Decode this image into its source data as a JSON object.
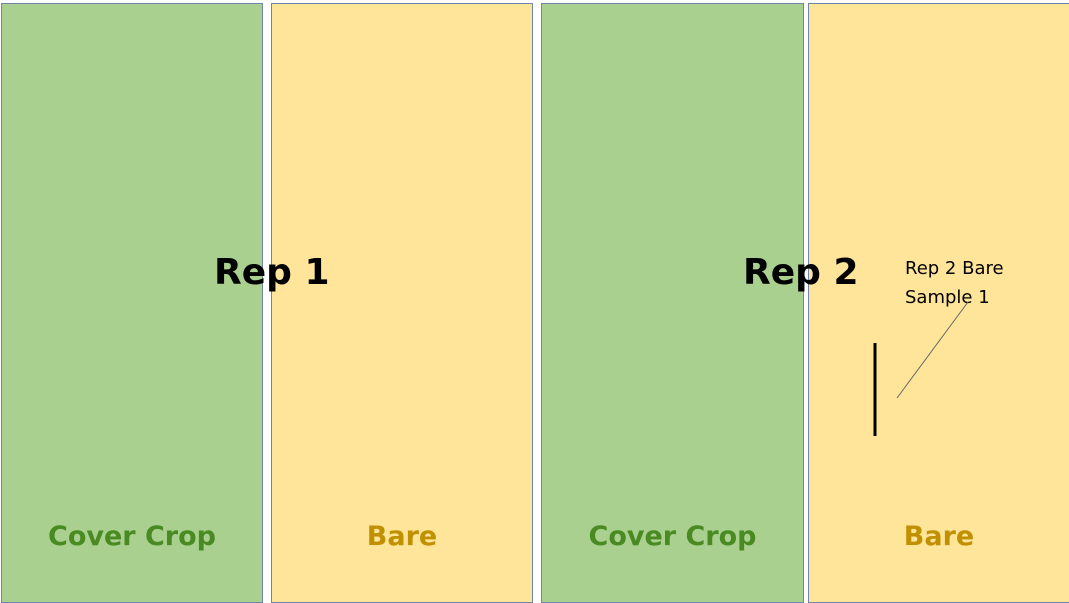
{
  "plots": [
    {
      "label": "Cover Crop",
      "treatment": "cover"
    },
    {
      "label": "Bare",
      "treatment": "bare"
    },
    {
      "label": "Cover Crop",
      "treatment": "cover"
    },
    {
      "label": "Bare",
      "treatment": "bare"
    }
  ],
  "reps": [
    {
      "label": "Rep 1"
    },
    {
      "label": "Rep 2"
    }
  ],
  "annotation": {
    "line1": "Rep 2 Bare",
    "line2": "Sample 1"
  },
  "colors": {
    "cover_fill": "#a9d08e",
    "bare_fill": "#ffe599",
    "cover_text": "#4a8a22",
    "bare_text": "#c09000",
    "border": "#6f86a8"
  }
}
